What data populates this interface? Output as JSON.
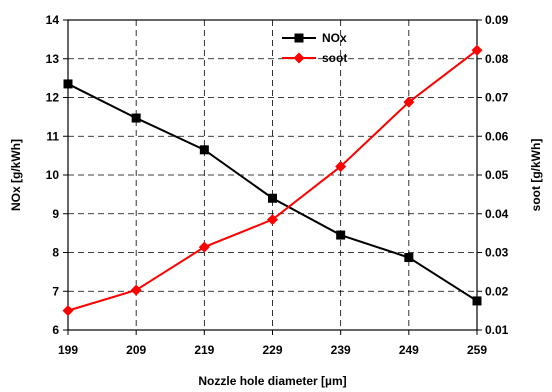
{
  "chart_data": {
    "type": "line",
    "x": [
      199,
      209,
      219,
      229,
      239,
      249,
      259
    ],
    "xlabel": "Nozzle hole diameter [µm]",
    "ylabel_left": "NOx [g/kWh]",
    "ylabel_right": "soot [g/kWh]",
    "ylim_left": [
      6,
      14
    ],
    "yticks_left": [
      "6",
      "7",
      "8",
      "9",
      "10",
      "11",
      "12",
      "13",
      "14"
    ],
    "ylim_right": [
      0.01,
      0.09
    ],
    "yticks_right": [
      "0.01",
      "0.02",
      "0.03",
      "0.04",
      "0.05",
      "0.06",
      "0.07",
      "0.08",
      "0.09"
    ],
    "xticks": [
      "199",
      "209",
      "219",
      "229",
      "239",
      "249",
      "259"
    ],
    "grid": true,
    "legend_position": "top-right",
    "series": [
      {
        "name": "NOx",
        "axis": "left",
        "color": "#000000",
        "marker": "square",
        "values": [
          12.35,
          11.47,
          10.65,
          9.4,
          8.45,
          7.87,
          6.75
        ]
      },
      {
        "name": "soot",
        "axis": "right",
        "color": "#ff0000",
        "marker": "diamond",
        "values": [
          0.015,
          0.0203,
          0.0314,
          0.0385,
          0.0522,
          0.0688,
          0.0822
        ]
      }
    ]
  }
}
